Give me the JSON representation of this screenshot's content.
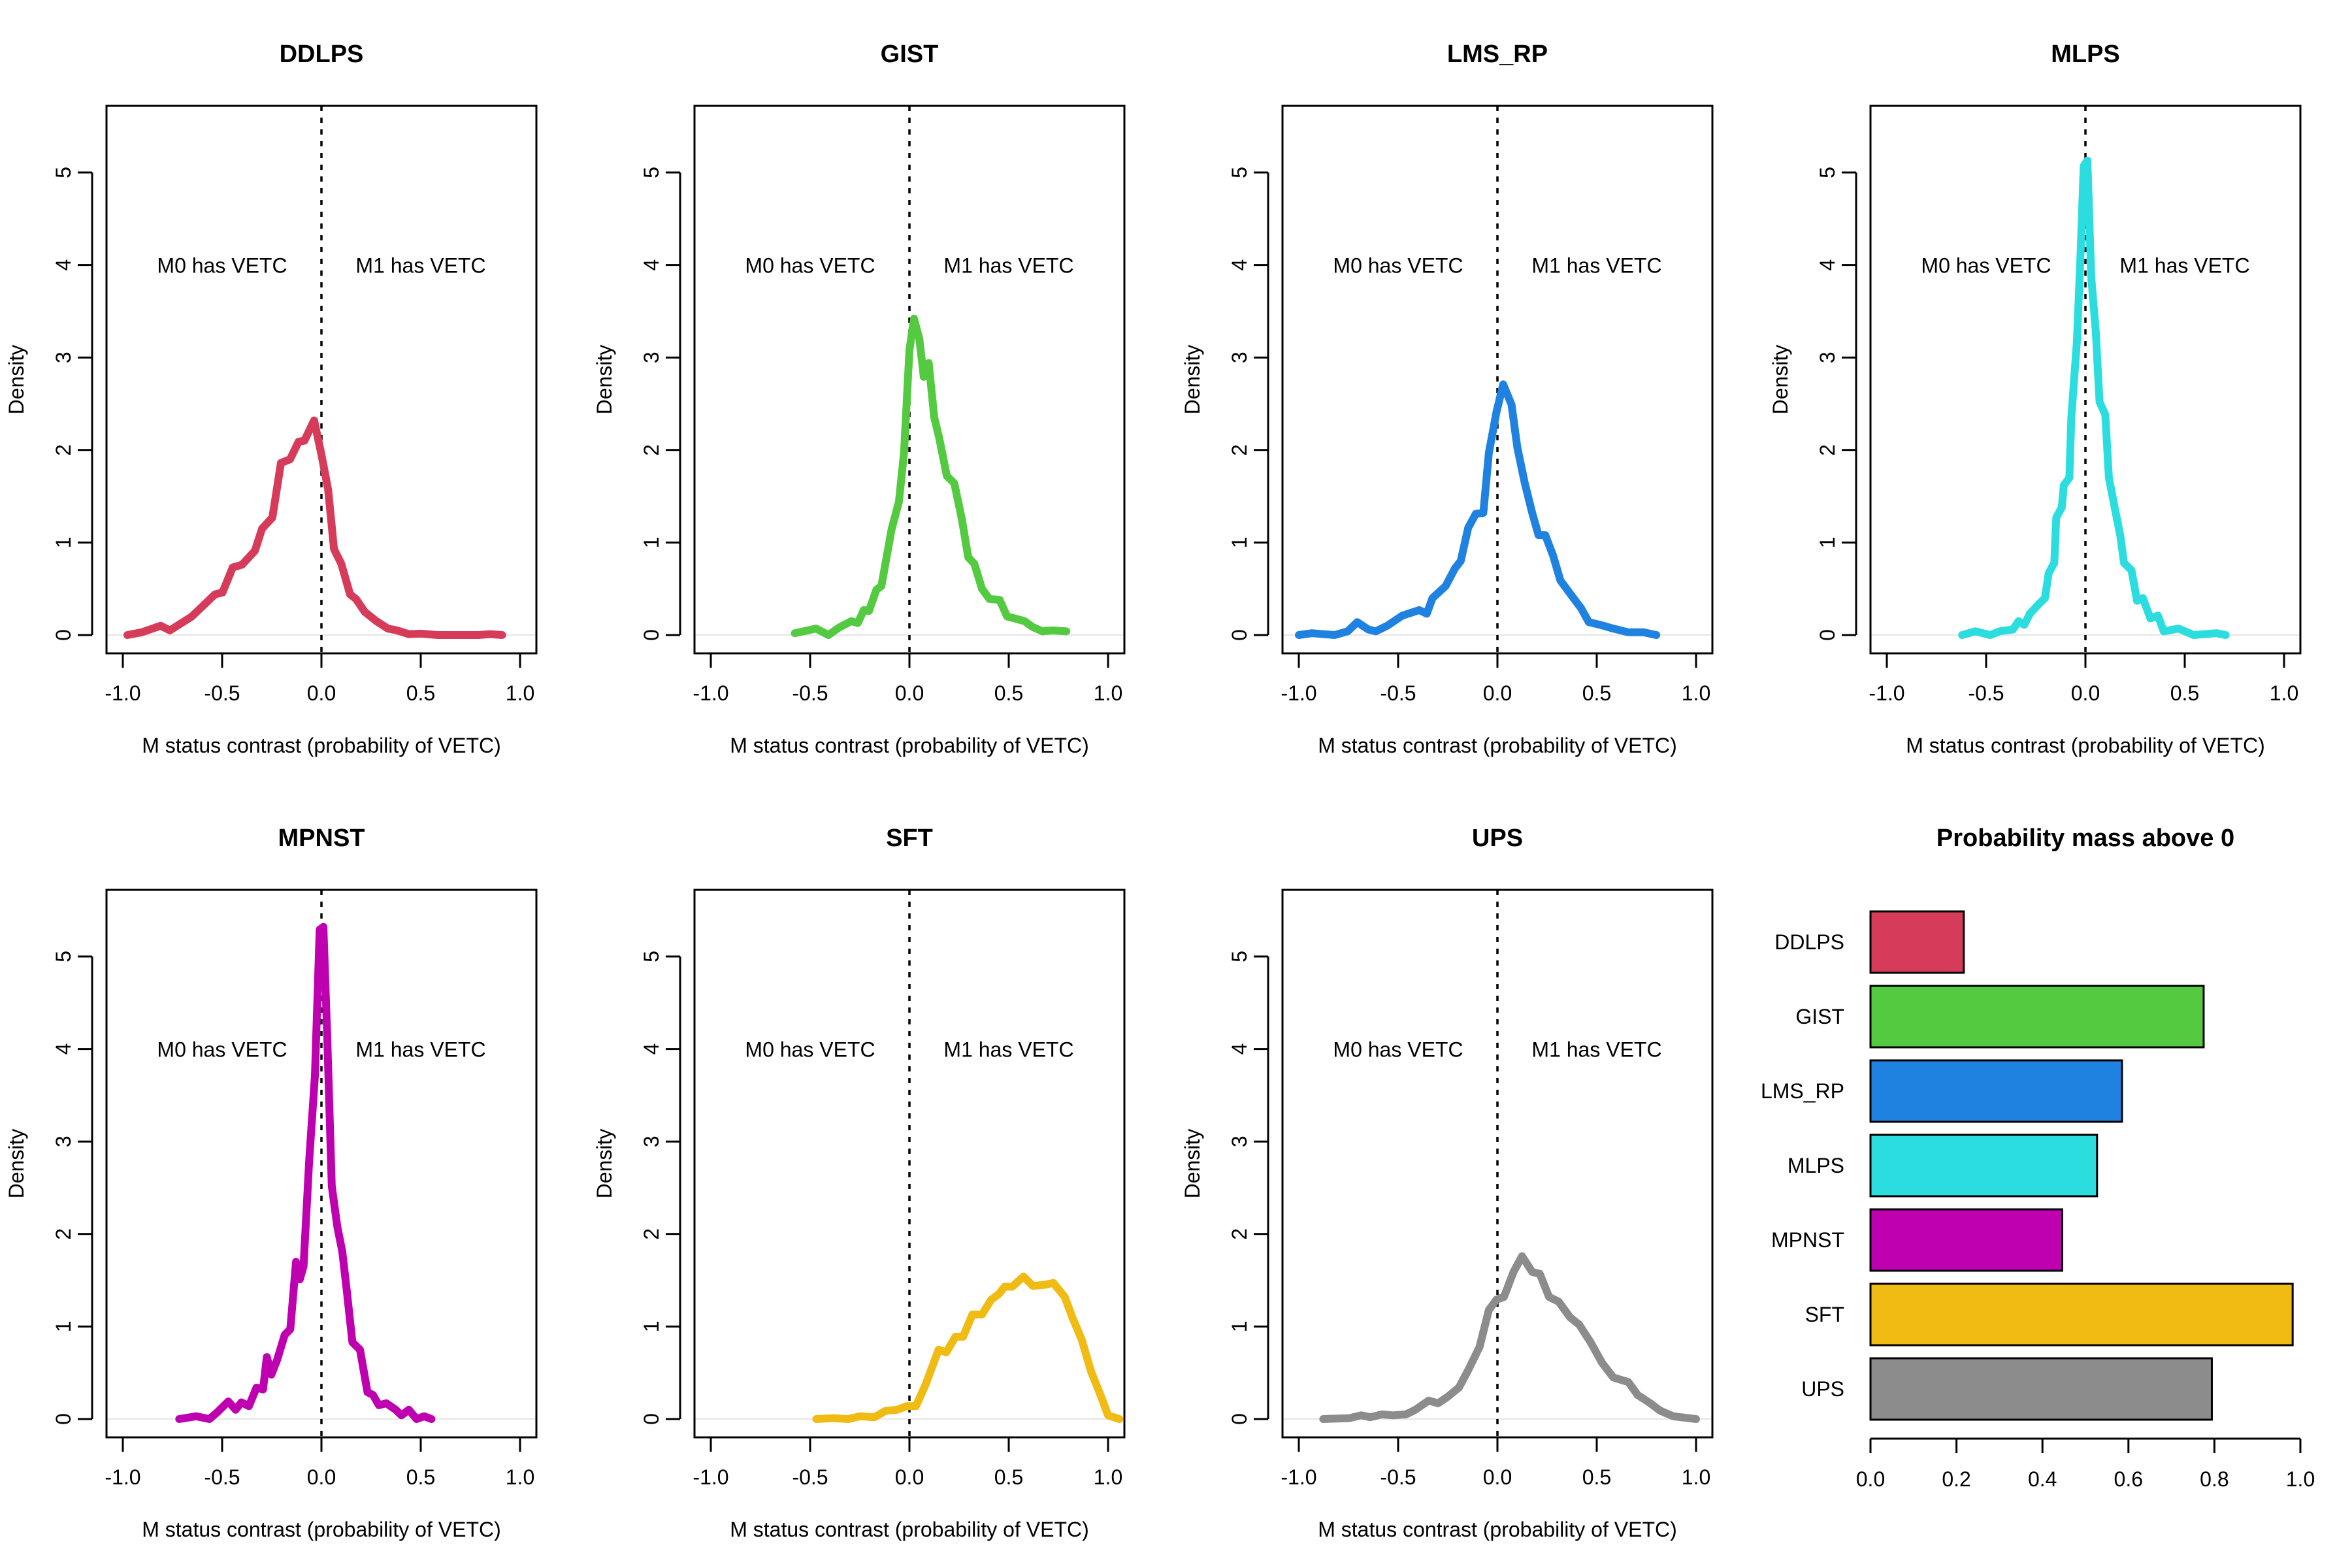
{
  "figure": {
    "annotation_left": "M0 has VETC",
    "annotation_right": "M1 has VETC",
    "density_ylabel": "Density",
    "density_xlabel": "M status contrast (probability of VETC)"
  },
  "chart_data": [
    {
      "type": "line",
      "title": "DDLPS",
      "xlabel": "M status contrast (probability of VETC)",
      "ylabel": "Density",
      "xlim": [
        -1.0,
        1.0
      ],
      "ylim": [
        0,
        5.5
      ],
      "xticks": [
        "-1.0",
        "-0.5",
        "0.0",
        "0.5",
        "1.0"
      ],
      "yticks": [
        "0",
        "1",
        "2",
        "3",
        "4",
        "5"
      ],
      "reference_line_x": 0,
      "annotations": [
        "M0 has VETC",
        "M1 has VETC"
      ],
      "color": "#D63C5A",
      "x": [
        -0.977,
        -0.905,
        -0.81,
        -0.763,
        -0.653,
        -0.536,
        -0.498,
        -0.447,
        -0.4,
        -0.335,
        -0.299,
        -0.247,
        -0.204,
        -0.158,
        -0.115,
        -0.086,
        -0.037,
        0.0,
        0.034,
        0.063,
        0.1,
        0.144,
        0.174,
        0.218,
        0.277,
        0.335,
        0.38,
        0.44,
        0.5,
        0.586,
        0.79,
        0.85,
        0.91
      ],
      "y": [
        0,
        0.03,
        0.1,
        0.05,
        0.2,
        0.44,
        0.46,
        0.73,
        0.76,
        0.91,
        1.15,
        1.27,
        1.86,
        1.9,
        2.09,
        2.1,
        2.32,
        1.95,
        1.57,
        0.93,
        0.77,
        0.44,
        0.39,
        0.25,
        0.15,
        0.07,
        0.05,
        0.01,
        0.015,
        0,
        0,
        0.01,
        0
      ]
    },
    {
      "type": "line",
      "title": "GIST",
      "xlabel": "M status contrast (probability of VETC)",
      "ylabel": "Density",
      "xlim": [
        -1.0,
        1.0
      ],
      "ylim": [
        0,
        5.5
      ],
      "xticks": [
        "-1.0",
        "-0.5",
        "0.0",
        "0.5",
        "1.0"
      ],
      "yticks": [
        "0",
        "1",
        "2",
        "3",
        "4",
        "5"
      ],
      "reference_line_x": 0,
      "annotations": [
        "M0 has VETC",
        "M1 has VETC"
      ],
      "color": "#54CA40",
      "x": [
        -0.577,
        -0.47,
        -0.408,
        -0.355,
        -0.293,
        -0.26,
        -0.23,
        -0.204,
        -0.166,
        -0.141,
        -0.09,
        -0.053,
        -0.027,
        0.0,
        0.023,
        0.05,
        0.072,
        0.097,
        0.125,
        0.15,
        0.188,
        0.226,
        0.264,
        0.296,
        0.327,
        0.365,
        0.403,
        0.454,
        0.492,
        0.53,
        0.58,
        0.618,
        0.669,
        0.72,
        0.79
      ],
      "y": [
        0.02,
        0.07,
        0.0,
        0.08,
        0.15,
        0.13,
        0.27,
        0.26,
        0.49,
        0.53,
        1.14,
        1.44,
        1.98,
        3.08,
        3.42,
        3.2,
        2.79,
        2.94,
        2.35,
        2.13,
        1.72,
        1.64,
        1.25,
        0.84,
        0.77,
        0.5,
        0.39,
        0.38,
        0.2,
        0.18,
        0.15,
        0.09,
        0.04,
        0.05,
        0.04
      ]
    },
    {
      "type": "line",
      "title": "LMS_RP",
      "xlabel": "M status contrast (probability of VETC)",
      "ylabel": "Density",
      "xlim": [
        -1.0,
        1.0
      ],
      "ylim": [
        0,
        5.5
      ],
      "xticks": [
        "-1.0",
        "-0.5",
        "0.0",
        "0.5",
        "1.0"
      ],
      "yticks": [
        "0",
        "1",
        "2",
        "3",
        "4",
        "5"
      ],
      "reference_line_x": 0,
      "annotations": [
        "M0 has VETC",
        "M1 has VETC"
      ],
      "color": "#2082E0",
      "x": [
        -1.0,
        -0.934,
        -0.82,
        -0.754,
        -0.706,
        -0.65,
        -0.612,
        -0.555,
        -0.479,
        -0.394,
        -0.356,
        -0.327,
        -0.261,
        -0.214,
        -0.185,
        -0.147,
        -0.109,
        -0.071,
        -0.043,
        -0.005,
        0.029,
        0.071,
        0.1,
        0.137,
        0.175,
        0.207,
        0.241,
        0.28,
        0.317,
        0.365,
        0.421,
        0.46,
        0.517,
        0.583,
        0.659,
        0.735,
        0.8
      ],
      "y": [
        0,
        0.02,
        0,
        0.04,
        0.14,
        0.06,
        0.04,
        0.1,
        0.21,
        0.27,
        0.23,
        0.4,
        0.53,
        0.72,
        0.8,
        1.16,
        1.31,
        1.32,
        1.97,
        2.41,
        2.71,
        2.49,
        2.03,
        1.65,
        1.32,
        1.08,
        1.08,
        0.86,
        0.59,
        0.45,
        0.29,
        0.14,
        0.11,
        0.07,
        0.03,
        0.03,
        0
      ]
    },
    {
      "type": "line",
      "title": "MLPS",
      "xlabel": "M status contrast (probability of VETC)",
      "ylabel": "Density",
      "xlim": [
        -1.0,
        1.0
      ],
      "ylim": [
        0,
        5.5
      ],
      "xticks": [
        "-1.0",
        "-0.5",
        "0.0",
        "0.5",
        "1.0"
      ],
      "yticks": [
        "0",
        "1",
        "2",
        "3",
        "4",
        "5"
      ],
      "reference_line_x": 0,
      "annotations": [
        "M0 has VETC",
        "M1 has VETC"
      ],
      "color": "#2CDDE0",
      "x": [
        -0.621,
        -0.555,
        -0.479,
        -0.432,
        -0.365,
        -0.337,
        -0.308,
        -0.28,
        -0.233,
        -0.204,
        -0.185,
        -0.157,
        -0.147,
        -0.119,
        -0.109,
        -0.081,
        -0.071,
        -0.043,
        -0.024,
        -0.009,
        0.01,
        0.029,
        0.052,
        0.071,
        0.1,
        0.118,
        0.147,
        0.175,
        0.194,
        0.232,
        0.26,
        0.289,
        0.327,
        0.365,
        0.394,
        0.469,
        0.545,
        0.659,
        0.706
      ],
      "y": [
        0,
        0.04,
        0,
        0.04,
        0.06,
        0.15,
        0.11,
        0.23,
        0.34,
        0.4,
        0.67,
        0.78,
        1.27,
        1.38,
        1.62,
        1.7,
        2.35,
        3.17,
        4.15,
        5.07,
        5.13,
        3.88,
        3.28,
        2.52,
        2.38,
        1.7,
        1.38,
        1.08,
        0.78,
        0.7,
        0.37,
        0.4,
        0.18,
        0.21,
        0.04,
        0.07,
        0,
        0.02,
        0
      ]
    },
    {
      "type": "line",
      "title": "MPNST",
      "xlabel": "M status contrast (probability of VETC)",
      "ylabel": "Density",
      "xlim": [
        -1.0,
        1.0
      ],
      "ylim": [
        0,
        5.5
      ],
      "xticks": [
        "-1.0",
        "-0.5",
        "0.0",
        "0.5",
        "1.0"
      ],
      "yticks": [
        "0",
        "1",
        "2",
        "3",
        "4",
        "5"
      ],
      "reference_line_x": 0,
      "annotations": [
        "M0 has VETC",
        "M1 has VETC"
      ],
      "color": "#BE00B0",
      "x": [
        -0.716,
        -0.631,
        -0.564,
        -0.526,
        -0.469,
        -0.432,
        -0.403,
        -0.365,
        -0.327,
        -0.294,
        -0.275,
        -0.252,
        -0.223,
        -0.185,
        -0.157,
        -0.128,
        -0.109,
        -0.09,
        -0.062,
        -0.033,
        -0.009,
        0.01,
        0.029,
        0.052,
        0.08,
        0.105,
        0.128,
        0.156,
        0.194,
        0.232,
        0.26,
        0.289,
        0.327,
        0.374,
        0.403,
        0.44,
        0.479,
        0.517,
        0.554
      ],
      "y": [
        0,
        0.03,
        0,
        0.07,
        0.19,
        0.1,
        0.18,
        0.14,
        0.34,
        0.32,
        0.67,
        0.48,
        0.64,
        0.91,
        0.97,
        1.7,
        1.51,
        1.65,
        2.79,
        3.71,
        5.29,
        5.32,
        4.15,
        2.52,
        2.08,
        1.81,
        1.38,
        0.83,
        0.75,
        0.29,
        0.26,
        0.15,
        0.17,
        0.1,
        0.04,
        0.1,
        0,
        0.03,
        0
      ]
    },
    {
      "type": "line",
      "title": "SFT",
      "xlabel": "M status contrast (probability of VETC)",
      "ylabel": "Density",
      "xlim": [
        -1.0,
        1.0
      ],
      "ylim": [
        0,
        5.5
      ],
      "xticks": [
        "-1.0",
        "-0.5",
        "0.0",
        "0.5",
        "1.0"
      ],
      "yticks": [
        "0",
        "1",
        "2",
        "3",
        "4",
        "5"
      ],
      "reference_line_x": 0,
      "annotations": [
        "M0 has VETC",
        "M1 has VETC"
      ],
      "color": "#F0BB12",
      "x": [
        -0.469,
        -0.384,
        -0.308,
        -0.251,
        -0.176,
        -0.119,
        -0.062,
        -0.014,
        0.033,
        0.081,
        0.147,
        0.185,
        0.232,
        0.27,
        0.317,
        0.365,
        0.412,
        0.45,
        0.479,
        0.517,
        0.574,
        0.621,
        0.678,
        0.725,
        0.782,
        0.82,
        0.867,
        0.915,
        0.962,
        1.0,
        1.057
      ],
      "y": [
        0,
        0.01,
        0,
        0.03,
        0.02,
        0.09,
        0.1,
        0.14,
        0.14,
        0.37,
        0.75,
        0.72,
        0.89,
        0.89,
        1.13,
        1.13,
        1.29,
        1.35,
        1.43,
        1.43,
        1.54,
        1.44,
        1.45,
        1.47,
        1.32,
        1.1,
        0.86,
        0.51,
        0.26,
        0.04,
        0
      ]
    },
    {
      "type": "line",
      "title": "UPS",
      "xlabel": "M status contrast (probability of VETC)",
      "ylabel": "Density",
      "xlim": [
        -1.0,
        1.0
      ],
      "ylim": [
        0,
        5.5
      ],
      "xticks": [
        "-1.0",
        "-0.5",
        "0.0",
        "0.5",
        "1.0"
      ],
      "yticks": [
        "0",
        "1",
        "2",
        "3",
        "4",
        "5"
      ],
      "reference_line_x": 0,
      "annotations": [
        "M0 has VETC",
        "M1 has VETC"
      ],
      "color": "#8C8C8C",
      "x": [
        -0.877,
        -0.744,
        -0.687,
        -0.64,
        -0.583,
        -0.526,
        -0.46,
        -0.413,
        -0.346,
        -0.299,
        -0.251,
        -0.194,
        -0.147,
        -0.09,
        -0.043,
        -0.005,
        0.033,
        0.081,
        0.124,
        0.175,
        0.213,
        0.26,
        0.308,
        0.365,
        0.412,
        0.469,
        0.526,
        0.583,
        0.659,
        0.706,
        0.763,
        0.82,
        0.886,
        1.0
      ],
      "y": [
        0,
        0.01,
        0.04,
        0.02,
        0.05,
        0.04,
        0.05,
        0.1,
        0.2,
        0.17,
        0.24,
        0.34,
        0.53,
        0.78,
        1.18,
        1.29,
        1.32,
        1.59,
        1.76,
        1.59,
        1.57,
        1.32,
        1.27,
        1.1,
        1.02,
        0.83,
        0.61,
        0.45,
        0.4,
        0.26,
        0.18,
        0.09,
        0.03,
        0
      ]
    },
    {
      "type": "bar",
      "orientation": "horizontal",
      "title": "Probability mass above 0",
      "categories": [
        "DDLPS",
        "GIST",
        "LMS_RP",
        "MLPS",
        "MPNST",
        "SFT",
        "UPS"
      ],
      "values": [
        0.217,
        0.775,
        0.585,
        0.527,
        0.446,
        0.982,
        0.794
      ],
      "colors": [
        "#D63C5A",
        "#54CA40",
        "#2082E0",
        "#2CDDE0",
        "#BE00B0",
        "#F0BB12",
        "#8C8C8C"
      ],
      "xlim": [
        0,
        1.0
      ],
      "xticks": [
        "0.0",
        "0.2",
        "0.4",
        "0.6",
        "0.8",
        "1.0"
      ],
      "xlabel": "",
      "ylabel": ""
    }
  ]
}
